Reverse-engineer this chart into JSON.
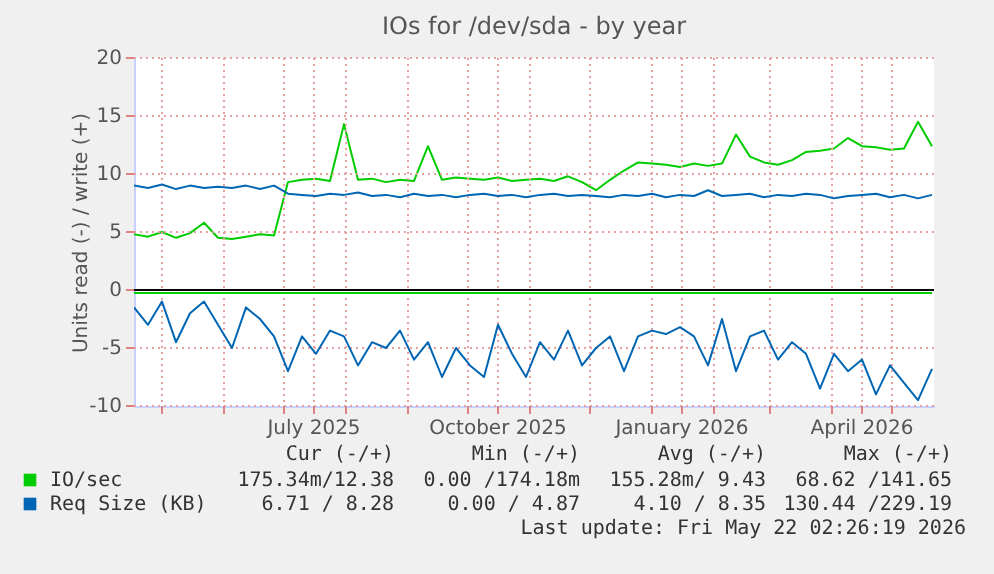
{
  "chart_data": {
    "type": "line",
    "title": "IOs for /dev/sda - by year",
    "ylabel": "Units read (-) / write (+)",
    "x": [
      "2025-04-17",
      "2025-04-24",
      "2025-05-01",
      "2025-05-08",
      "2025-05-15",
      "2025-05-22",
      "2025-05-29",
      "2025-06-05",
      "2025-06-12",
      "2025-06-19",
      "2025-06-26",
      "2025-07-03",
      "2025-07-10",
      "2025-07-17",
      "2025-07-24",
      "2025-07-31",
      "2025-08-07",
      "2025-08-14",
      "2025-08-21",
      "2025-08-28",
      "2025-09-04",
      "2025-09-11",
      "2025-09-18",
      "2025-09-25",
      "2025-10-02",
      "2025-10-09",
      "2025-10-16",
      "2025-10-23",
      "2025-10-30",
      "2025-11-06",
      "2025-11-13",
      "2025-11-20",
      "2025-11-27",
      "2025-12-04",
      "2025-12-11",
      "2025-12-18",
      "2025-12-25",
      "2026-01-01",
      "2026-01-08",
      "2026-01-15",
      "2026-01-22",
      "2026-01-29",
      "2026-02-05",
      "2026-02-12",
      "2026-02-19",
      "2026-02-26",
      "2026-03-05",
      "2026-03-12",
      "2026-03-19",
      "2026-03-26",
      "2026-04-02",
      "2026-04-09",
      "2026-04-16",
      "2026-04-23",
      "2026-04-30",
      "2026-05-07",
      "2026-05-14",
      "2026-05-21"
    ],
    "series": [
      {
        "name": "IO/sec",
        "color": "#00cc00",
        "values": [
          4.8,
          4.6,
          5.0,
          4.5,
          4.9,
          5.8,
          4.5,
          4.4,
          4.6,
          4.8,
          4.7,
          9.3,
          9.5,
          9.6,
          9.4,
          14.3,
          9.5,
          9.6,
          9.3,
          9.5,
          9.4,
          12.4,
          9.5,
          9.7,
          9.6,
          9.5,
          9.7,
          9.4,
          9.5,
          9.6,
          9.4,
          9.8,
          9.3,
          8.6,
          9.5,
          10.3,
          11.0,
          10.9,
          10.8,
          10.6,
          10.9,
          10.7,
          10.9,
          13.4,
          11.5,
          11.0,
          10.8,
          11.2,
          11.9,
          12.0,
          12.2,
          13.1,
          12.4,
          12.3,
          12.1,
          12.2,
          14.5,
          12.4
        ]
      },
      {
        "color": "#00cc00",
        "values": [
          -0.25,
          -0.25,
          -0.25,
          -0.25,
          -0.25,
          -0.25,
          -0.25,
          -0.25,
          -0.25,
          -0.25,
          -0.25,
          -0.25,
          -0.25,
          -0.25,
          -0.25,
          -0.25,
          -0.25,
          -0.25,
          -0.25,
          -0.25,
          -0.25,
          -0.25,
          -0.25,
          -0.25,
          -0.25,
          -0.25,
          -0.25,
          -0.25,
          -0.25,
          -0.25,
          -0.25,
          -0.25,
          -0.25,
          -0.25,
          -0.25,
          -0.25,
          -0.25,
          -0.25,
          -0.25,
          -0.25,
          -0.25,
          -0.25,
          -0.25,
          -0.25,
          -0.25,
          -0.25,
          -0.25,
          -0.25,
          -0.25,
          -0.25,
          -0.25,
          -0.25,
          -0.25,
          -0.25,
          -0.25,
          -0.25,
          -0.25,
          -0.25
        ]
      },
      {
        "name": "Req Size (KB)",
        "color": "#0066b3",
        "values": [
          9.0,
          8.8,
          9.1,
          8.7,
          9.0,
          8.8,
          8.9,
          8.8,
          9.0,
          8.7,
          9.0,
          8.3,
          8.2,
          8.1,
          8.3,
          8.2,
          8.4,
          8.1,
          8.2,
          8.0,
          8.3,
          8.1,
          8.2,
          8.0,
          8.2,
          8.3,
          8.1,
          8.2,
          8.0,
          8.2,
          8.3,
          8.1,
          8.2,
          8.1,
          8.0,
          8.2,
          8.1,
          8.3,
          8.0,
          8.2,
          8.1,
          8.6,
          8.1,
          8.2,
          8.3,
          8.0,
          8.2,
          8.1,
          8.3,
          8.2,
          7.9,
          8.1,
          8.2,
          8.3,
          8.0,
          8.2,
          7.9,
          8.2
        ]
      },
      {
        "color": "#0066b3",
        "values": [
          -1.5,
          -3,
          -1,
          -4.5,
          -2,
          -1,
          -3,
          -5,
          -1.5,
          -2.5,
          -4,
          -7,
          -4,
          -5.5,
          -3.5,
          -4,
          -6.5,
          -4.5,
          -5,
          -3.5,
          -6,
          -4.5,
          -7.5,
          -5,
          -6.5,
          -7.5,
          -3,
          -5.5,
          -7.5,
          -4.5,
          -6,
          -3.5,
          -6.5,
          -5,
          -4,
          -7,
          -4,
          -3.5,
          -3.8,
          -3.2,
          -4,
          -6.5,
          -2.5,
          -7,
          -4,
          -3.5,
          -6,
          -4.5,
          -5.5,
          -8.5,
          -5.5,
          -7,
          -6,
          -9,
          -6.5,
          -8,
          -9.5,
          -6.8
        ]
      }
    ],
    "xlim": [
      "2025-04-17",
      "2026-05-22"
    ],
    "xticks": [
      {
        "value": "2025-05-01",
        "label": null
      },
      {
        "value": "2025-06-01",
        "label": null
      },
      {
        "value": "2025-07-01",
        "label": null
      },
      {
        "value": "2025-07-16",
        "label": "July 2025"
      },
      {
        "value": "2025-08-01",
        "label": null
      },
      {
        "value": "2025-09-01",
        "label": null
      },
      {
        "value": "2025-10-01",
        "label": null
      },
      {
        "value": "2025-10-16",
        "label": "October 2025"
      },
      {
        "value": "2025-11-01",
        "label": null
      },
      {
        "value": "2025-12-01",
        "label": null
      },
      {
        "value": "2026-01-01",
        "label": null
      },
      {
        "value": "2026-01-16",
        "label": "January 2026"
      },
      {
        "value": "2026-02-01",
        "label": null
      },
      {
        "value": "2026-03-01",
        "label": null
      },
      {
        "value": "2026-04-01",
        "label": null
      },
      {
        "value": "2026-04-16",
        "label": "April 2026"
      },
      {
        "value": "2026-05-01",
        "label": null
      }
    ],
    "ylim": [
      -10,
      20
    ],
    "yticks": [
      -10,
      -5,
      0,
      5,
      10,
      15,
      20
    ],
    "grid": true,
    "legend": "bottom",
    "ref_lines": [
      {
        "axis": "y",
        "value": 0,
        "color": "#000000"
      }
    ],
    "annotations": [
      "Cur (-/+)",
      "Min (-/+)",
      "Avg (-/+)",
      "Max (-/+)",
      "175.34m/12.38",
      "0.00 /174.18m",
      "155.28m/ 9.43",
      "68.62 /141.65",
      "6.71 / 8.28",
      "0.00 / 4.87",
      "4.10 / 8.35",
      "130.44 /229.19",
      "Last update: Fri May 22 02:26:19 2026"
    ]
  }
}
